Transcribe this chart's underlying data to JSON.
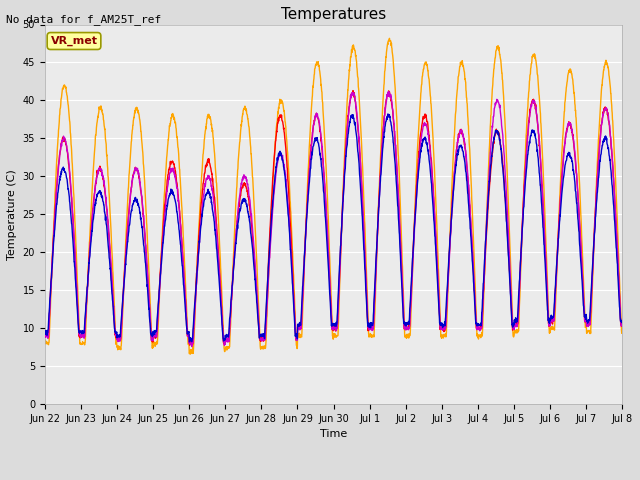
{
  "title": "Temperatures",
  "xlabel": "Time",
  "ylabel": "Temperature (C)",
  "note": "No data for f_AM25T_ref",
  "annotation": "VR_met",
  "ylim": [
    0,
    50
  ],
  "yticks": [
    0,
    5,
    10,
    15,
    20,
    25,
    30,
    35,
    40,
    45,
    50
  ],
  "series_colors": {
    "Panel T": "#FF0000",
    "Old Ref Temp": "#FFA500",
    "HMP45 T": "#0000CC",
    "CNR1 PRT": "#CC00CC"
  },
  "bg_color": "#DCDCDC",
  "plot_bg_color": "#EBEBEB",
  "grid_color": "#FFFFFF",
  "title_fontsize": 11,
  "axis_fontsize": 8,
  "tick_fontsize": 7,
  "note_fontsize": 8,
  "annot_fontsize": 8,
  "legend_fontsize": 8,
  "xtick_labels": [
    "Jun 22",
    "Jun 23",
    "Jun 24",
    "Jun 25",
    "Jun 26",
    "Jun 27",
    "Jun 28",
    "Jun 29",
    "Jun 30",
    "Jul 1",
    "Jul 2",
    "Jul 3",
    "Jul 4",
    "Jul 5",
    "Jul 6",
    "Jul 7",
    "Jul 8"
  ],
  "day_mins": [
    9.0,
    9.0,
    8.5,
    9.0,
    8.0,
    8.5,
    8.5,
    10.0,
    10.0,
    10.0,
    10.0,
    10.0,
    10.0,
    10.5,
    11.0,
    10.5
  ],
  "day_maxes_panel": [
    35,
    31,
    31,
    32,
    32,
    29,
    38,
    38,
    41,
    41,
    38,
    36,
    36,
    40,
    37,
    39
  ],
  "day_maxes_ref": [
    42,
    39,
    39,
    38,
    38,
    39,
    40,
    45,
    47,
    48,
    45,
    45,
    47,
    46,
    44,
    45
  ],
  "day_maxes_hmp": [
    31,
    28,
    27,
    28,
    28,
    27,
    33,
    35,
    38,
    38,
    35,
    34,
    36,
    36,
    33,
    35
  ],
  "day_maxes_cnr": [
    35,
    31,
    31,
    31,
    30,
    30,
    33,
    38,
    41,
    41,
    37,
    36,
    40,
    40,
    37,
    39
  ]
}
